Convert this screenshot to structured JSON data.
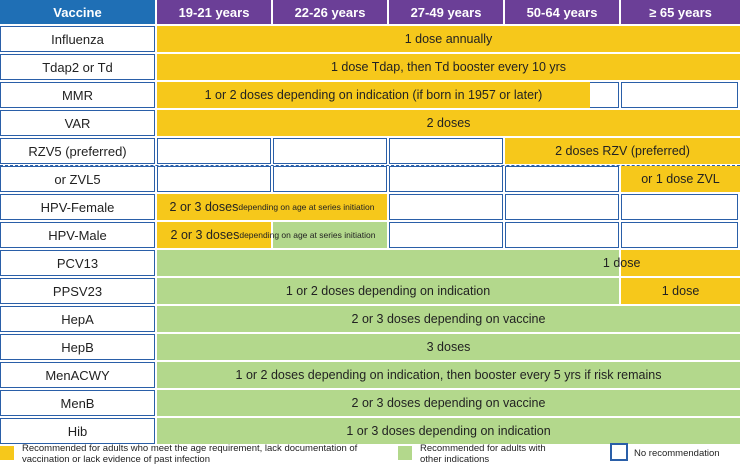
{
  "header": {
    "vaccine": "Vaccine",
    "ages": [
      "19-21 years",
      "22-26 years",
      "27-49 years",
      "50-64 years",
      "≥ 65 years"
    ]
  },
  "rows": [
    {
      "name": "Influenza",
      "segments": [
        {
          "from": 0,
          "to": 5,
          "color": "yellow",
          "text": "1 dose annually"
        }
      ]
    },
    {
      "name": "Tdap2 or Td",
      "segments": [
        {
          "from": 0,
          "to": 5,
          "color": "yellow",
          "text": "1 dose Tdap, then Td booster every 10 yrs"
        }
      ]
    },
    {
      "name": "MMR",
      "segments": [
        {
          "from": 0,
          "to": 3.75,
          "color": "yellow",
          "text": "1 or 2 doses depending on indication (if born in 1957 or later)"
        }
      ]
    },
    {
      "name": "VAR",
      "segments": [
        {
          "from": 0,
          "to": 5,
          "color": "yellow",
          "text": "2 doses"
        }
      ]
    },
    {
      "name": "RZV5 (preferred)",
      "segments": [
        {
          "from": 3,
          "to": 5,
          "color": "yellow",
          "text": "2 doses RZV (preferred)"
        }
      ]
    },
    {
      "name": "or ZVL5",
      "segments": [
        {
          "from": 4,
          "to": 5,
          "color": "yellow",
          "text": "or 1 dose ZVL"
        }
      ]
    },
    {
      "name": "HPV-Female",
      "segments": [
        {
          "from": 0,
          "to": 2,
          "color": "yellow",
          "text": "2 or 3 doses ",
          "small": "depending on age at series initiation"
        }
      ]
    },
    {
      "name": "HPV-Male",
      "segments": [
        {
          "from": 0,
          "to": 1,
          "color": "yellow",
          "text": "",
          "small": ""
        },
        {
          "from": 1,
          "to": 2,
          "color": "green",
          "text": "",
          "small": ""
        }
      ],
      "overlay": {
        "from": 0,
        "to": 2,
        "text": "2 or 3 doses ",
        "small": "depending on age at series initiation"
      }
    },
    {
      "name": "PCV13",
      "segments": [
        {
          "from": 0,
          "to": 4,
          "color": "green",
          "text": ""
        },
        {
          "from": 4,
          "to": 5,
          "color": "yellow",
          "text": ""
        }
      ],
      "overlay": {
        "from": 3.55,
        "to": 4.45,
        "text": "1 dose"
      }
    },
    {
      "name": "PPSV23",
      "segments": [
        {
          "from": 0,
          "to": 4,
          "color": "green",
          "text": "1 or 2 doses depending on indication"
        },
        {
          "from": 4,
          "to": 5,
          "color": "yellow",
          "text": "1 dose"
        }
      ]
    },
    {
      "name": "HepA",
      "segments": [
        {
          "from": 0,
          "to": 5,
          "color": "green",
          "text": "2 or 3 doses depending on vaccine"
        }
      ]
    },
    {
      "name": "HepB",
      "segments": [
        {
          "from": 0,
          "to": 5,
          "color": "green",
          "text": "3 doses"
        }
      ]
    },
    {
      "name": "MenACWY",
      "segments": [
        {
          "from": 0,
          "to": 5,
          "color": "green",
          "text": "1 or 2 doses depending on indication, then booster every 5 yrs if risk remains"
        }
      ]
    },
    {
      "name": "MenB",
      "segments": [
        {
          "from": 0,
          "to": 5,
          "color": "green",
          "text": "2 or 3 doses depending on vaccine"
        }
      ]
    },
    {
      "name": "Hib",
      "segments": [
        {
          "from": 0,
          "to": 5,
          "color": "green",
          "text": "1 or 3 doses depending on indication"
        }
      ]
    }
  ],
  "legend": [
    {
      "color": "yellow",
      "text": "Recommended for adults who meet the age requirement, lack documentation of vaccination or lack evidence of past infection"
    },
    {
      "color": "green",
      "text": "Recommended for adults with other indications"
    },
    {
      "color": "white",
      "text": "No recommendation"
    }
  ],
  "colors": {
    "yellow": "#f6c81b",
    "green": "#b3d88c",
    "header_purple": "#6b3f97",
    "header_blue": "#1f6fb5",
    "border": "#2a5fa8"
  }
}
